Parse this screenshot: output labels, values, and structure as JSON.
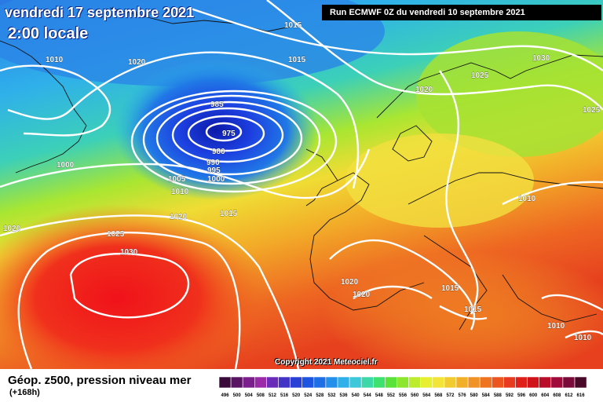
{
  "header": {
    "date": "vendredi 17 septembre 2021",
    "time": "2:00 locale",
    "run": "Run ECMWF 0Z du vendredi 10 septembre 2021"
  },
  "copyright": "Copyright 2021 Meteociel.fr",
  "footer": {
    "title": "Géop. z500, pression niveau mer",
    "lead": "(+168h)"
  },
  "scale": {
    "values": [
      "496",
      "500",
      "504",
      "508",
      "512",
      "516",
      "520",
      "524",
      "528",
      "532",
      "536",
      "540",
      "544",
      "548",
      "552",
      "556",
      "560",
      "564",
      "568",
      "572",
      "576",
      "580",
      "584",
      "588",
      "592",
      "596",
      "600",
      "604",
      "608",
      "612",
      "616"
    ],
    "colors": [
      "#3a0a3a",
      "#5a1464",
      "#7b1f8c",
      "#9a2aa8",
      "#6a2bb8",
      "#4434c6",
      "#2a3fd4",
      "#1d55e0",
      "#1e6ee6",
      "#2590ea",
      "#2fb0ea",
      "#3cc8d8",
      "#3ed8a8",
      "#3ee070",
      "#58e23a",
      "#8ce62e",
      "#bdeb2e",
      "#e6f030",
      "#f3e43a",
      "#f2cc2e",
      "#f2b02a",
      "#f19226",
      "#ef7422",
      "#ec5520",
      "#e83a1e",
      "#e02018",
      "#d0121a",
      "#b80e2a",
      "#a00a3a",
      "#7a0a3a",
      "#4a0828"
    ]
  },
  "isobars": [
    "1020",
    "1015",
    "1010",
    "1020",
    "1015",
    "1030",
    "1025",
    "985",
    "1020",
    "1025",
    "975",
    "980",
    "990",
    "995",
    "1000",
    "1000",
    "1005",
    "1010",
    "1020",
    "1015",
    "1010",
    "1020",
    "1025",
    "1030",
    "1020",
    "1020",
    "1015",
    "1015",
    "1010",
    "1010"
  ],
  "colors": {
    "contour": "#ffffff",
    "low_center": "#0a2a8a",
    "high_center": "#ff1a1a",
    "coast": "#111111"
  }
}
